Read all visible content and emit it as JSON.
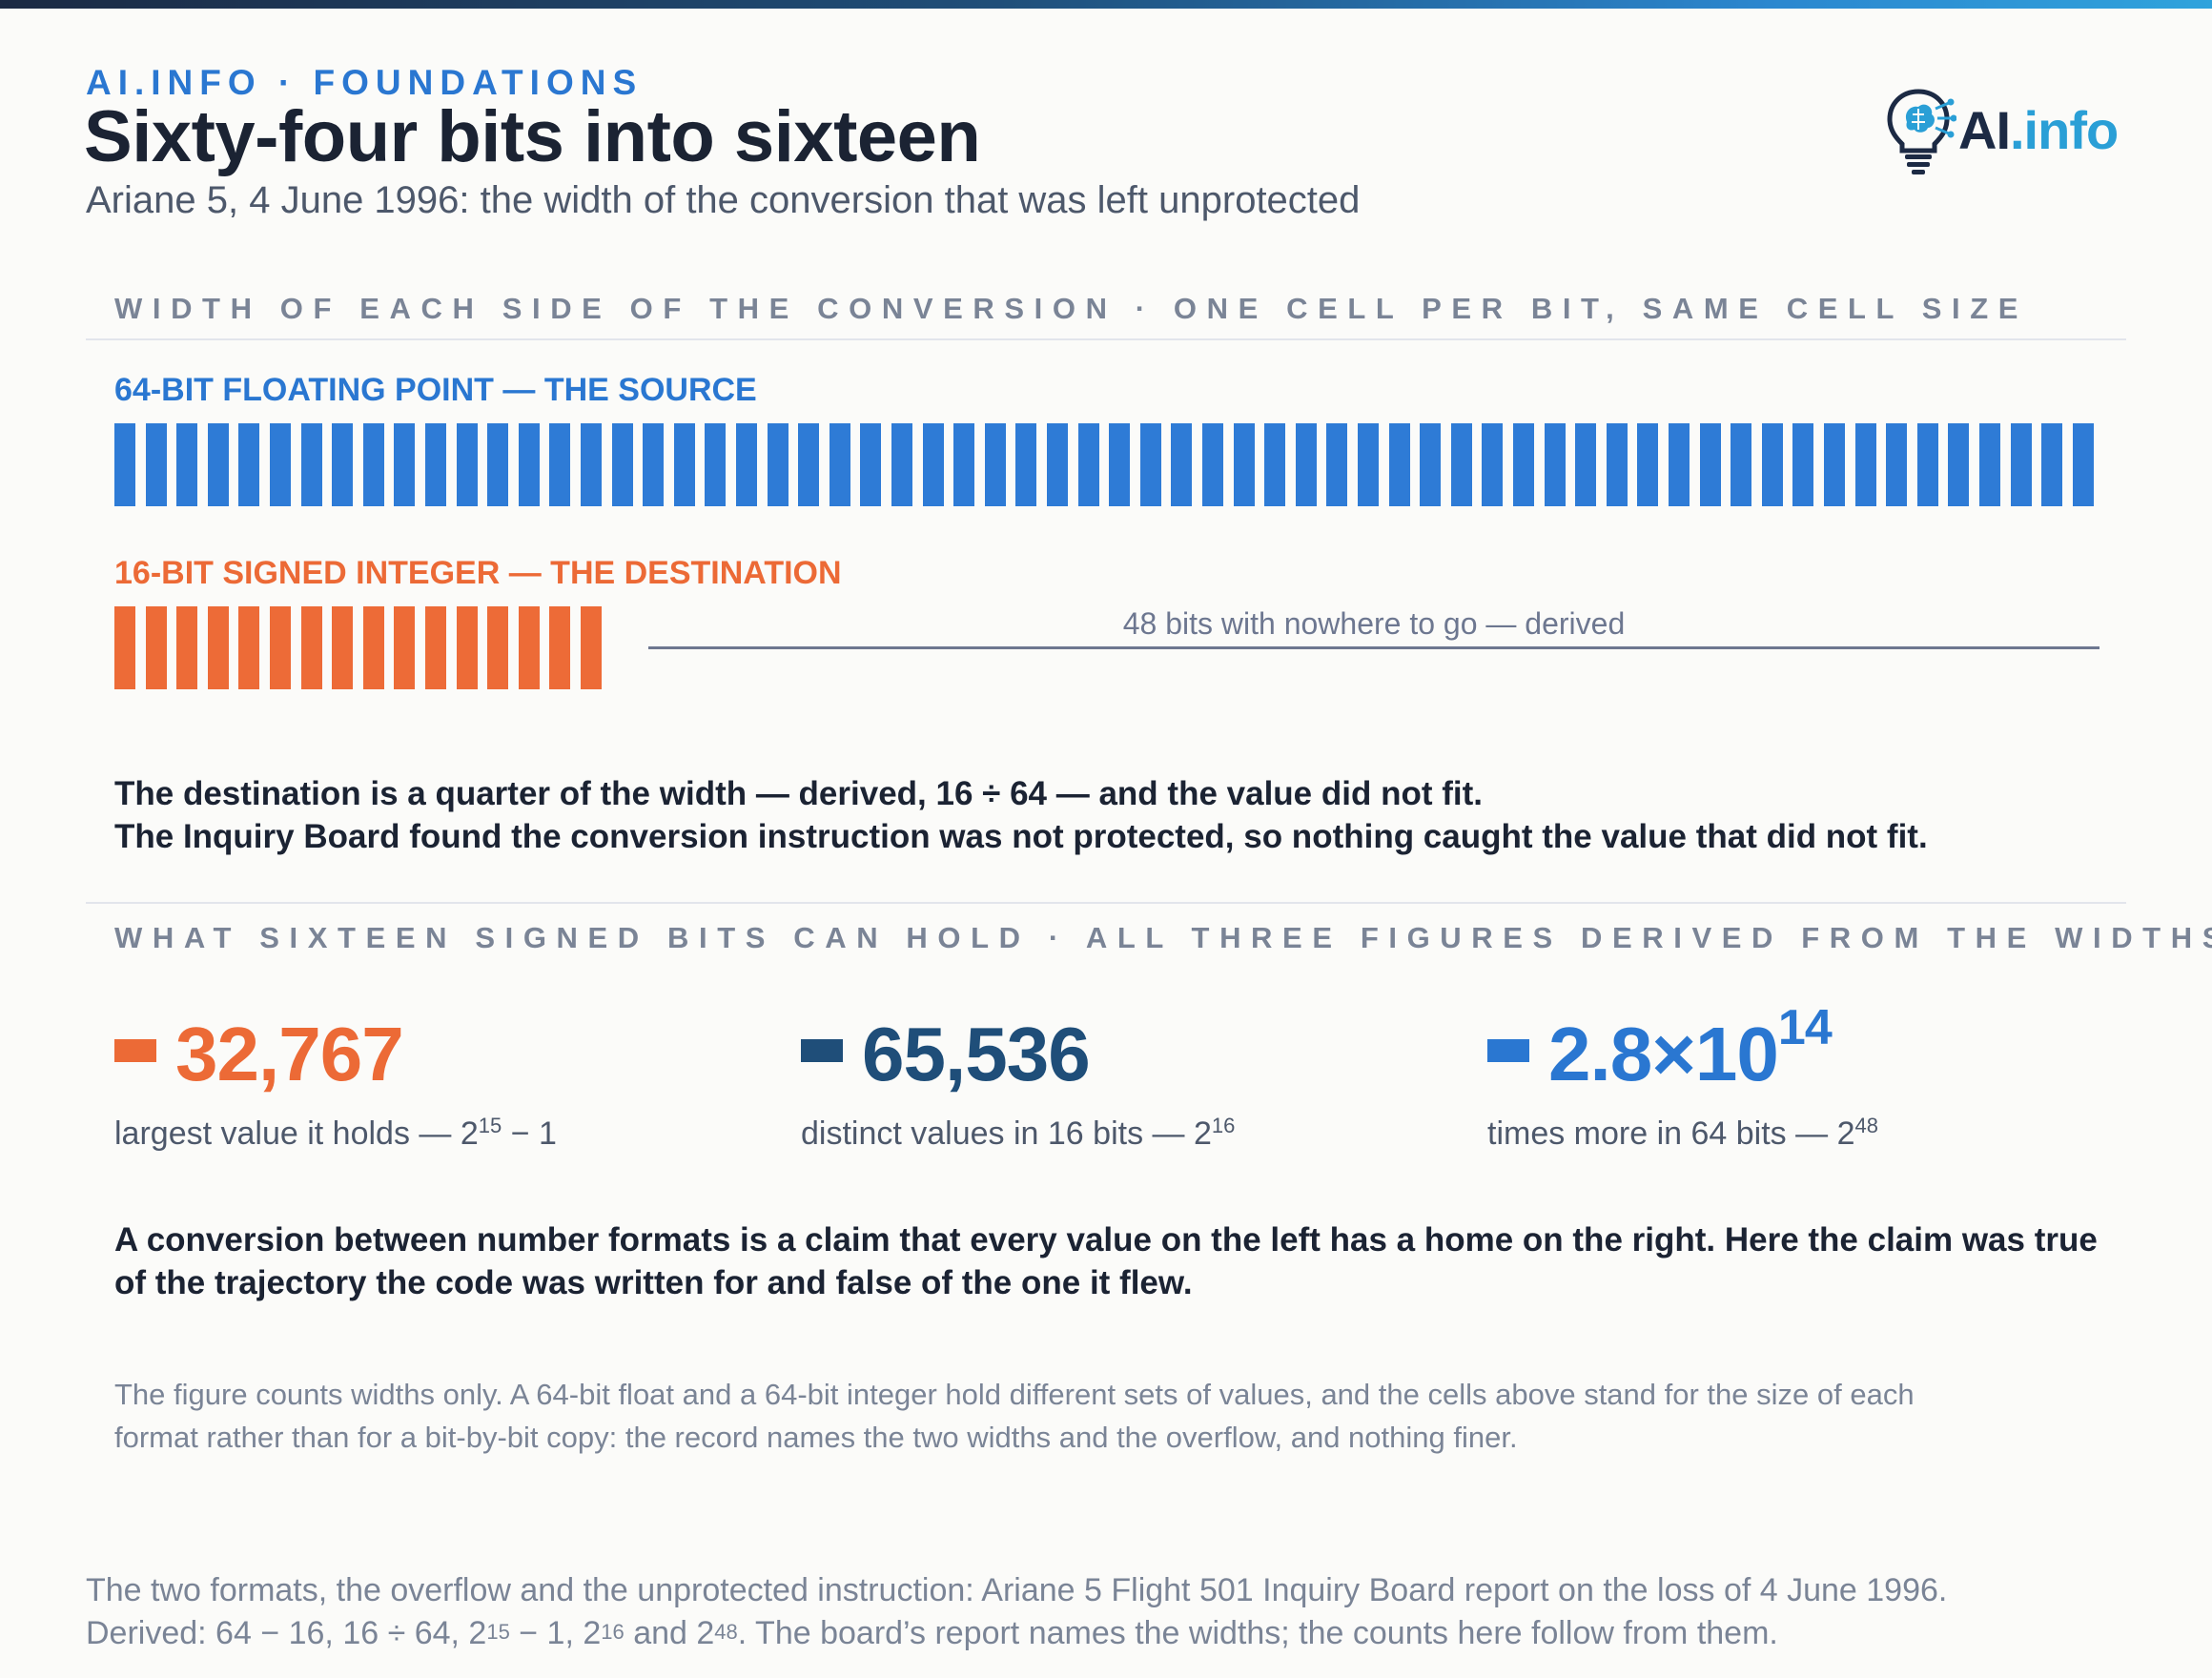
{
  "header": {
    "kicker": "AI.INFO · FOUNDATIONS",
    "title": "Sixty-four bits into sixteen",
    "subtitle": "Ariane 5, 4 June 1996: the width of the conversion that was left unprotected",
    "logo_text_a": "AI",
    "logo_text_b": ".info"
  },
  "widths_section": {
    "label": "WIDTH OF EACH SIDE OF THE CONVERSION · ONE CELL PER BIT, SAME CELL SIZE",
    "source_row": {
      "label": "64-BIT FLOATING POINT — THE SOURCE",
      "bits": 64
    },
    "destination_row": {
      "label": "16-BIT SIGNED INTEGER — THE DESTINATION",
      "bits": 16
    },
    "gap_label": "48 bits with nowhere to go — derived",
    "statement_1": "The destination is a quarter of the width — derived, 16 ÷ 64 — and the value did not fit.",
    "statement_2": "The Inquiry Board found the conversion instruction was not protected, so nothing caught the value that did not fit."
  },
  "capacity_section": {
    "label": "WHAT SIXTEEN SIGNED BITS CAN HOLD · ALL THREE FIGURES DERIVED FROM THE WIDTHS",
    "stats": [
      {
        "value": "32,767",
        "caption_text": "largest value it holds — 2",
        "caption_exp": "15",
        "caption_tail": " − 1",
        "color": "#ec6a36"
      },
      {
        "value": "65,536",
        "caption_text": "distinct values in 16 bits — 2",
        "caption_exp": "16",
        "caption_tail": "",
        "color": "#1f4e79"
      },
      {
        "value_base": "2.8×10",
        "value_exp": "14",
        "caption_text": "times more in 64 bits — 2",
        "caption_exp": "48",
        "caption_tail": "",
        "color": "#2a77d1"
      }
    ]
  },
  "claim": "A conversion between number formats is a claim that every value on the left has a home on the right. Here the claim was true of the trajectory the code was written for and false of the one it flew.",
  "note": "The figure counts widths only. A 64-bit float and a 64-bit integer hold different sets of values, and the cells above stand for the size of each format rather than for a bit-by-bit copy: the record names the two widths and the overflow, and nothing finer.",
  "source": {
    "line_1": "The two formats, the overflow and the unprotected instruction: Ariane 5 Flight 501 Inquiry Board report on the loss of 4 June 1996.",
    "line_2_parts": [
      "Derived: 64 − 16, 16 ÷ 64, 2",
      "15",
      " − 1, 2",
      "16",
      " and 2",
      "48",
      ". The board’s report names the widths; the counts here follow from them."
    ]
  },
  "colors": {
    "source_cells": "#2e7bd6",
    "destination_cells": "#ed6b37",
    "accent_blue": "#2a77d1",
    "accent_orange": "#ec6a36",
    "accent_navy": "#1f4e79"
  }
}
